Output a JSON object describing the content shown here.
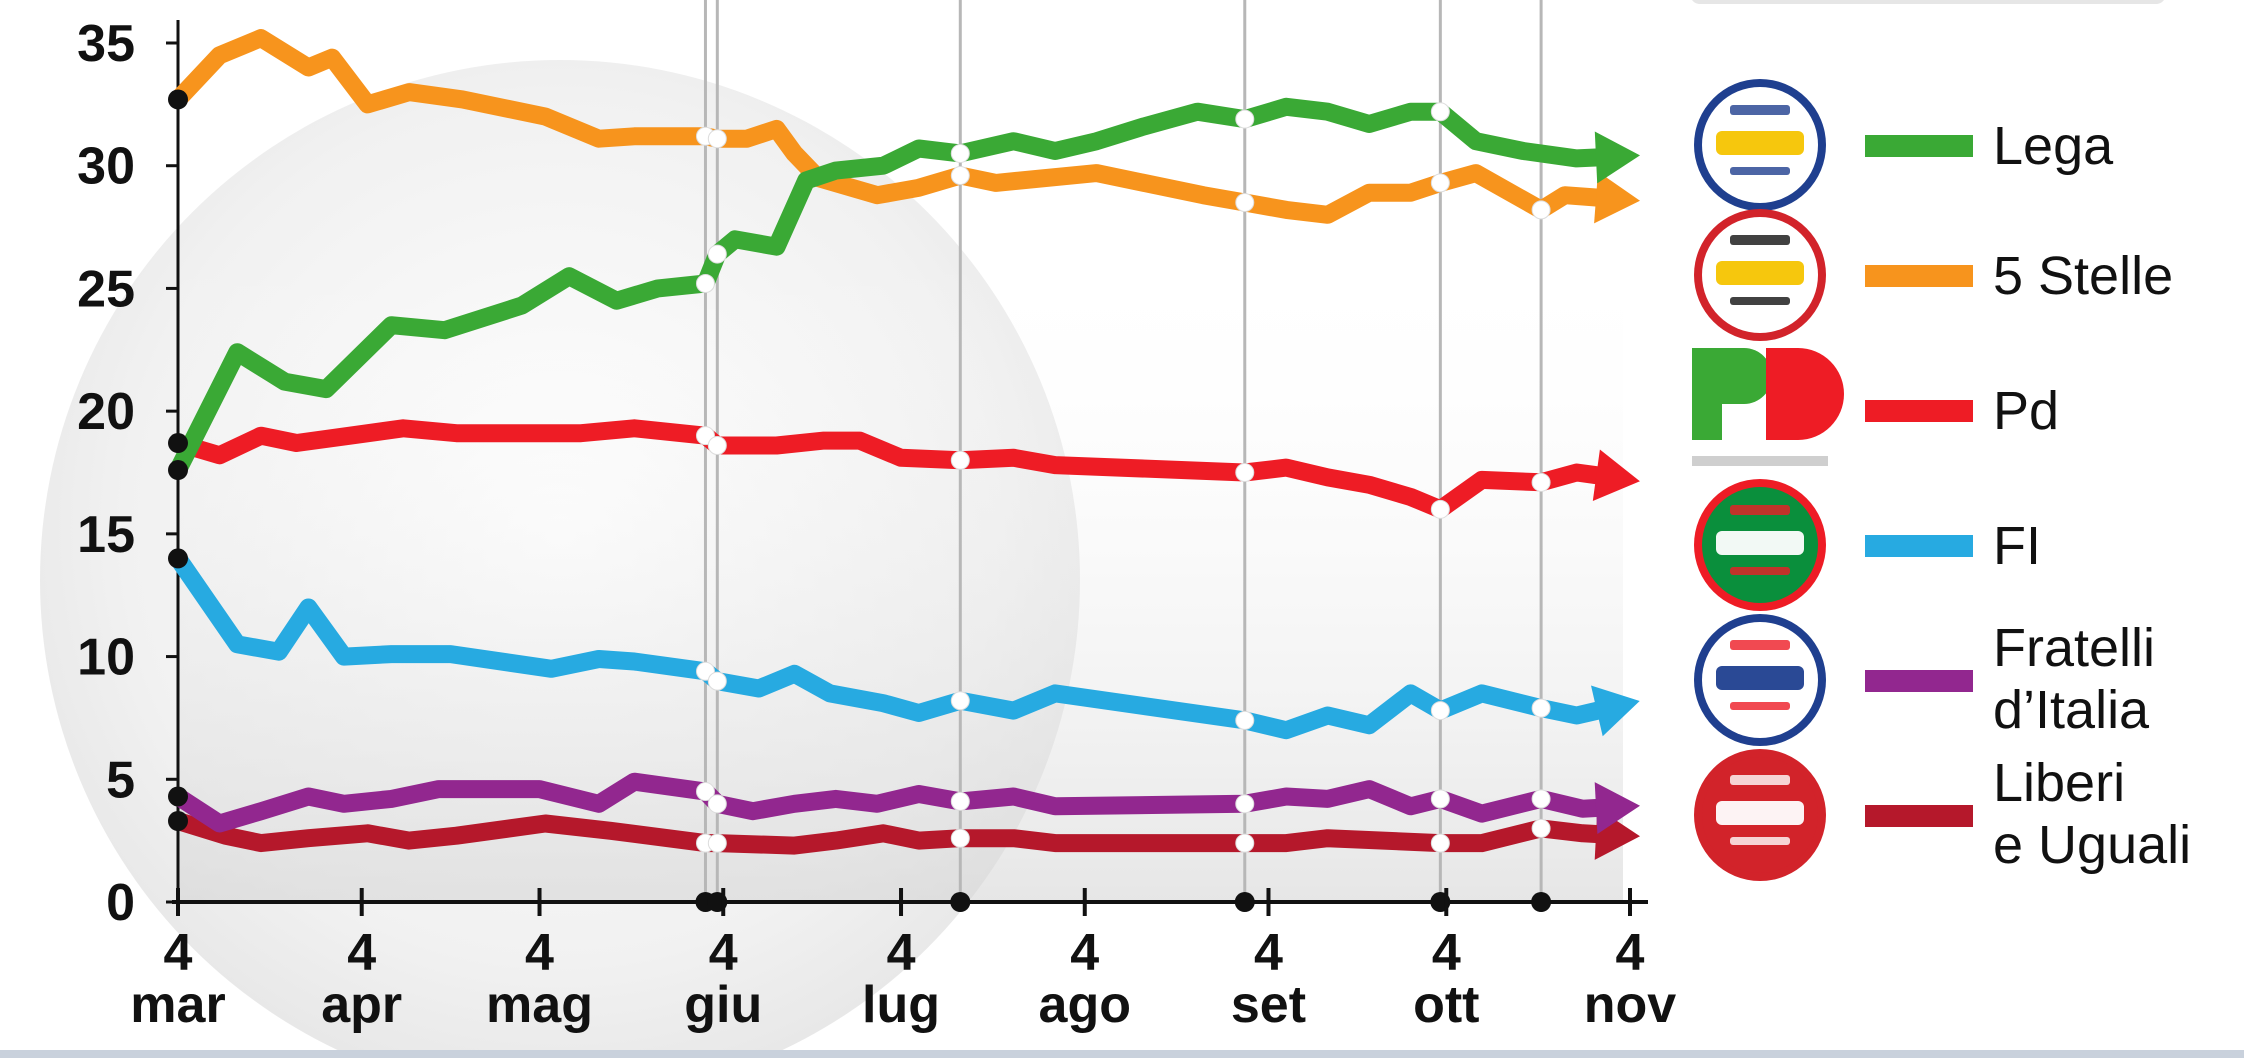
{
  "chart_data": {
    "type": "line",
    "title": "",
    "xlabel": "",
    "ylabel": "",
    "ylim": [
      0,
      37
    ],
    "y_ticks": [
      0,
      5,
      10,
      15,
      20,
      25,
      30,
      35
    ],
    "y_tick_labels": [
      "0",
      "5",
      "10",
      "15",
      "20",
      "25",
      "30",
      "35"
    ],
    "x_range": [
      "2018-03-04",
      "2018-11-04"
    ],
    "x_ticks": [
      {
        "date": "2018-03-04",
        "day": "4",
        "month": "mar"
      },
      {
        "date": "2018-04-04",
        "day": "4",
        "month": "apr"
      },
      {
        "date": "2018-05-04",
        "day": "4",
        "month": "mag"
      },
      {
        "date": "2018-06-04",
        "day": "4",
        "month": "giu"
      },
      {
        "date": "2018-07-04",
        "day": "4",
        "month": "lug"
      },
      {
        "date": "2018-08-04",
        "day": "4",
        "month": "ago"
      },
      {
        "date": "2018-09-04",
        "day": "4",
        "month": "set"
      },
      {
        "date": "2018-10-04",
        "day": "4",
        "month": "ott"
      },
      {
        "date": "2018-11-04",
        "day": "4",
        "month": "nov"
      }
    ],
    "event_dates": [
      "2018-06-01",
      "2018-06-03",
      "2018-07-14",
      "2018-08-31",
      "2018-10-03",
      "2018-10-20"
    ],
    "legend_position": "right",
    "grid": false,
    "series": [
      {
        "name": "Lega",
        "logo": "lega-salvini-logo",
        "color": "#3aa935",
        "x": [
          "2018-03-04",
          "2018-03-14",
          "2018-03-22",
          "2018-03-29",
          "2018-04-09",
          "2018-04-18",
          "2018-05-01",
          "2018-05-09",
          "2018-05-17",
          "2018-05-24",
          "2018-06-01",
          "2018-06-03",
          "2018-06-06",
          "2018-06-13",
          "2018-06-18",
          "2018-06-23",
          "2018-07-01",
          "2018-07-07",
          "2018-07-14",
          "2018-07-23",
          "2018-07-30",
          "2018-08-06",
          "2018-08-14",
          "2018-08-23",
          "2018-08-31",
          "2018-09-07",
          "2018-09-14",
          "2018-09-21",
          "2018-09-28",
          "2018-10-03",
          "2018-10-09",
          "2018-10-17",
          "2018-10-26",
          "2018-11-04"
        ],
        "y": [
          17.6,
          22.4,
          21.2,
          20.9,
          23.5,
          23.3,
          24.3,
          25.5,
          24.5,
          25.0,
          25.2,
          26.4,
          27.0,
          26.7,
          29.4,
          29.8,
          30.0,
          30.7,
          30.5,
          31.0,
          30.6,
          31.0,
          31.6,
          32.2,
          31.9,
          32.4,
          32.2,
          31.7,
          32.2,
          32.2,
          31.0,
          30.6,
          30.3,
          30.4
        ]
      },
      {
        "name": "5 Stelle",
        "logo": "movimento-5-stelle-logo",
        "color": "#f7941d",
        "x": [
          "2018-03-04",
          "2018-03-11",
          "2018-03-18",
          "2018-03-26",
          "2018-03-30",
          "2018-04-05",
          "2018-04-12",
          "2018-04-21",
          "2018-05-05",
          "2018-05-14",
          "2018-05-20",
          "2018-06-01",
          "2018-06-03",
          "2018-06-08",
          "2018-06-13",
          "2018-06-16",
          "2018-06-20",
          "2018-06-30",
          "2018-07-07",
          "2018-07-14",
          "2018-07-20",
          "2018-08-06",
          "2018-08-24",
          "2018-08-31",
          "2018-09-07",
          "2018-09-14",
          "2018-09-21",
          "2018-09-28",
          "2018-10-03",
          "2018-10-09",
          "2018-10-20",
          "2018-10-24",
          "2018-11-04"
        ],
        "y": [
          32.7,
          34.5,
          35.2,
          34.0,
          34.4,
          32.5,
          33.0,
          32.7,
          32.0,
          31.1,
          31.2,
          31.2,
          31.1,
          31.1,
          31.5,
          30.5,
          29.5,
          28.8,
          29.1,
          29.6,
          29.3,
          29.7,
          28.8,
          28.5,
          28.2,
          28.0,
          28.9,
          28.9,
          29.3,
          29.7,
          28.2,
          28.8,
          28.6
        ]
      },
      {
        "name": "Pd",
        "logo": "partito-democratico-logo",
        "color": "#ee1c25",
        "x": [
          "2018-03-04",
          "2018-03-11",
          "2018-03-18",
          "2018-03-24",
          "2018-04-02",
          "2018-04-11",
          "2018-04-20",
          "2018-05-01",
          "2018-05-11",
          "2018-05-20",
          "2018-06-01",
          "2018-06-03",
          "2018-06-13",
          "2018-06-21",
          "2018-06-27",
          "2018-07-04",
          "2018-07-14",
          "2018-07-23",
          "2018-07-30",
          "2018-08-31",
          "2018-09-07",
          "2018-09-14",
          "2018-09-21",
          "2018-09-28",
          "2018-10-03",
          "2018-10-10",
          "2018-10-20",
          "2018-10-26",
          "2018-11-04"
        ],
        "y": [
          18.7,
          18.2,
          19.0,
          18.7,
          19.0,
          19.3,
          19.1,
          19.1,
          19.1,
          19.3,
          19.0,
          18.6,
          18.6,
          18.8,
          18.8,
          18.1,
          18.0,
          18.1,
          17.8,
          17.5,
          17.7,
          17.3,
          17.0,
          16.5,
          16.0,
          17.2,
          17.1,
          17.5,
          17.2
        ]
      },
      {
        "name": "FI",
        "logo": "forza-italia-logo",
        "color": "#27aae1",
        "x": [
          "2018-03-04",
          "2018-03-14",
          "2018-03-21",
          "2018-03-26",
          "2018-04-01",
          "2018-04-09",
          "2018-04-19",
          "2018-05-06",
          "2018-05-14",
          "2018-05-20",
          "2018-06-01",
          "2018-06-03",
          "2018-06-10",
          "2018-06-16",
          "2018-06-22",
          "2018-07-01",
          "2018-07-07",
          "2018-07-14",
          "2018-07-23",
          "2018-07-30",
          "2018-08-31",
          "2018-09-07",
          "2018-09-14",
          "2018-09-21",
          "2018-09-28",
          "2018-10-03",
          "2018-10-10",
          "2018-10-20",
          "2018-10-26",
          "2018-11-04"
        ],
        "y": [
          14.0,
          10.5,
          10.2,
          12.0,
          10.0,
          10.1,
          10.1,
          9.5,
          9.9,
          9.8,
          9.4,
          9.0,
          8.7,
          9.3,
          8.5,
          8.1,
          7.7,
          8.2,
          7.8,
          8.5,
          7.4,
          7.0,
          7.6,
          7.2,
          8.5,
          7.8,
          8.5,
          7.9,
          7.6,
          8.1
        ]
      },
      {
        "name": "Fratelli d’Italia",
        "logo": "fratelli-d-italia-logo",
        "color": "#92278f",
        "x": [
          "2018-03-04",
          "2018-03-11",
          "2018-03-18",
          "2018-03-26",
          "2018-04-01",
          "2018-04-09",
          "2018-04-17",
          "2018-05-04",
          "2018-05-14",
          "2018-05-20",
          "2018-06-01",
          "2018-06-03",
          "2018-06-09",
          "2018-06-16",
          "2018-06-23",
          "2018-06-30",
          "2018-07-07",
          "2018-07-14",
          "2018-07-23",
          "2018-07-30",
          "2018-08-31",
          "2018-09-07",
          "2018-09-14",
          "2018-09-21",
          "2018-09-28",
          "2018-10-03",
          "2018-10-10",
          "2018-10-20",
          "2018-10-27",
          "2018-11-04"
        ],
        "y": [
          4.3,
          3.2,
          3.7,
          4.3,
          4.0,
          4.2,
          4.6,
          4.6,
          4.0,
          4.9,
          4.5,
          4.0,
          3.7,
          4.0,
          4.2,
          4.0,
          4.4,
          4.1,
          4.3,
          3.9,
          4.0,
          4.3,
          4.2,
          4.6,
          3.9,
          4.2,
          3.6,
          4.2,
          3.8,
          3.9
        ]
      },
      {
        "name": "Liberi e Uguali",
        "logo": "liberi-e-uguali-logo",
        "color": "#b5182b",
        "x": [
          "2018-03-04",
          "2018-03-12",
          "2018-03-18",
          "2018-03-26",
          "2018-04-05",
          "2018-04-12",
          "2018-04-20",
          "2018-05-05",
          "2018-05-16",
          "2018-06-01",
          "2018-06-03",
          "2018-06-16",
          "2018-06-23",
          "2018-07-01",
          "2018-07-07",
          "2018-07-14",
          "2018-07-23",
          "2018-07-30",
          "2018-08-31",
          "2018-09-07",
          "2018-09-14",
          "2018-10-03",
          "2018-10-10",
          "2018-10-20",
          "2018-10-27",
          "2018-11-04"
        ],
        "y": [
          3.3,
          2.7,
          2.4,
          2.6,
          2.8,
          2.5,
          2.7,
          3.2,
          2.9,
          2.4,
          2.4,
          2.3,
          2.5,
          2.8,
          2.5,
          2.6,
          2.6,
          2.4,
          2.4,
          2.4,
          2.6,
          2.4,
          2.4,
          3.0,
          2.8,
          2.7
        ]
      }
    ]
  },
  "legend": [
    {
      "logo": "lega-salvini-logo",
      "lines": [
        "Lega"
      ],
      "color": "#3aa935"
    },
    {
      "logo": "movimento-5-stelle-logo",
      "lines": [
        "5 Stelle"
      ],
      "color": "#f7941d"
    },
    {
      "logo": "partito-democratico-logo",
      "lines": [
        "Pd"
      ],
      "color": "#ee1c25"
    },
    {
      "logo": "forza-italia-logo",
      "lines": [
        "FI"
      ],
      "color": "#27aae1"
    },
    {
      "logo": "fratelli-d-italia-logo",
      "lines": [
        "Fratelli",
        "d’Italia"
      ],
      "color": "#92278f"
    },
    {
      "logo": "liberi-e-uguali-logo",
      "lines": [
        "Liberi",
        "e Uguali"
      ],
      "color": "#b5182b"
    }
  ]
}
